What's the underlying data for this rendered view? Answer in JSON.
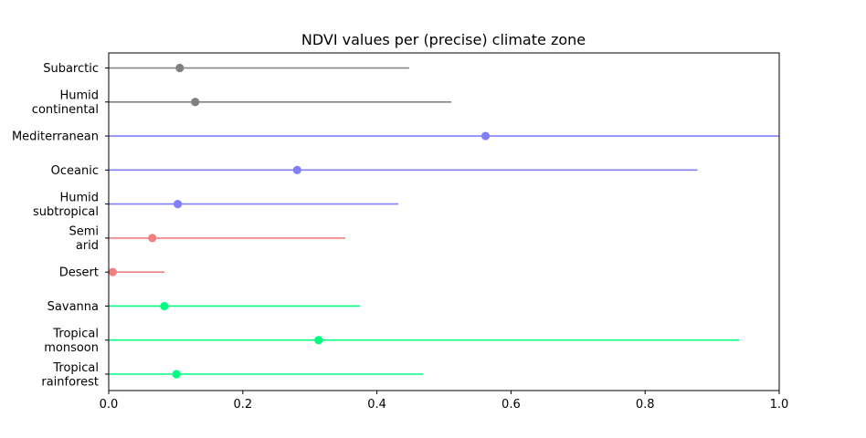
{
  "chart_data": {
    "type": "scatter",
    "title": "NDVI values per (precise) climate zone",
    "xlabel": "",
    "ylabel": "",
    "xlim": [
      0,
      1.0
    ],
    "xticks": [
      "0.0",
      "0.2",
      "0.4",
      "0.6",
      "0.8",
      "1.0"
    ],
    "xtick_values": [
      0,
      0.2,
      0.4,
      0.6,
      0.8,
      1.0
    ],
    "grid": false,
    "rows": [
      {
        "label": [
          "Subarctic"
        ],
        "low": 0.0,
        "high": 0.448,
        "point": 0.106,
        "color": "#808080"
      },
      {
        "label": [
          "Humid",
          "continental"
        ],
        "low": 0.0,
        "high": 0.511,
        "point": 0.129,
        "color": "#808080"
      },
      {
        "label": [
          "Mediterranean"
        ],
        "low": 0.0,
        "high": 1.0,
        "point": 0.562,
        "color": "#8080ff"
      },
      {
        "label": [
          "Oceanic"
        ],
        "low": 0.0,
        "high": 0.878,
        "point": 0.281,
        "color": "#8080ff"
      },
      {
        "label": [
          "Humid",
          "subtropical"
        ],
        "low": 0.0,
        "high": 0.432,
        "point": 0.103,
        "color": "#8080ff"
      },
      {
        "label": [
          "Semi",
          "arid"
        ],
        "low": 0.0,
        "high": 0.353,
        "point": 0.065,
        "color": "#f08080"
      },
      {
        "label": [
          "Desert"
        ],
        "low": 0.0,
        "high": 0.083,
        "point": 0.006,
        "color": "#f08080"
      },
      {
        "label": [
          "Savanna"
        ],
        "low": 0.0,
        "high": 0.375,
        "point": 0.083,
        "color": "#00ff80"
      },
      {
        "label": [
          "Tropical",
          "monsoon"
        ],
        "low": 0.0,
        "high": 0.94,
        "point": 0.313,
        "color": "#00ff80"
      },
      {
        "label": [
          "Tropical",
          "rainforest"
        ],
        "low": 0.0,
        "high": 0.469,
        "point": 0.101,
        "color": "#00ff80"
      }
    ]
  }
}
